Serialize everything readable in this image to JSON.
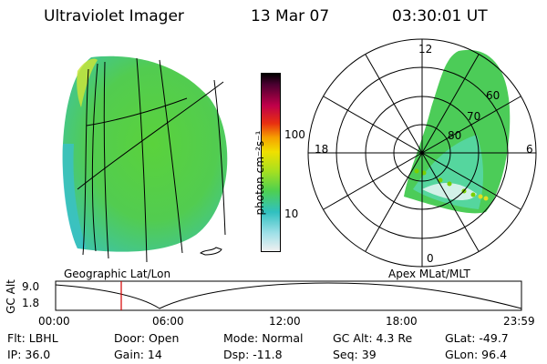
{
  "header": {
    "title": "Ultraviolet Imager",
    "date": "13 Mar 07",
    "time": "03:30:01 UT"
  },
  "colorbar": {
    "label": "photon cm⁻²s⁻¹",
    "ticks": [
      "100",
      "10"
    ]
  },
  "panels": {
    "left_label": "Geographic Lat/Lon",
    "right_label": "Apex MLat/MLT"
  },
  "polar": {
    "mlt_labels": {
      "top": "12",
      "left": "18",
      "right": "6",
      "bottom": "0"
    },
    "lat_labels": [
      "60",
      "70",
      "80"
    ]
  },
  "altitude_plot": {
    "ylabel": "GC Alt",
    "yticks": [
      "9.0",
      "1.8"
    ],
    "xticks": [
      "00:00",
      "06:00",
      "12:00",
      "18:00",
      "23:59"
    ],
    "marker_color": "#d40000"
  },
  "info": {
    "row1": [
      "Flt: LBHL",
      "Door: Open",
      "Mode: Normal",
      "GC Alt: 4.3 Re",
      "GLat: -49.7"
    ],
    "row2": [
      "IP: 36.0",
      "Gain: 14",
      "Dsp:  -11.8",
      "Seq: 39",
      "GLon:  96.4"
    ]
  }
}
